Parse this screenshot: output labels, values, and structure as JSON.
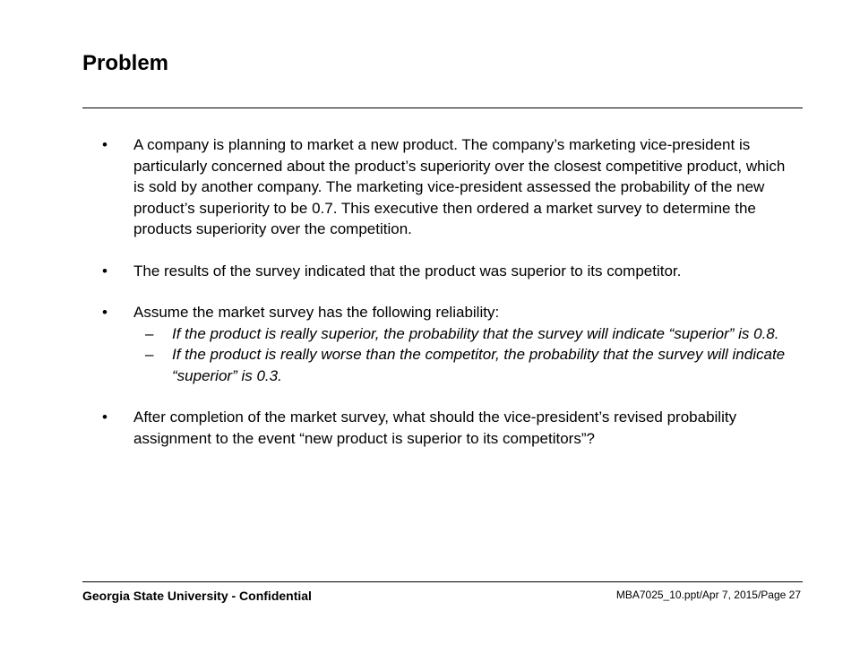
{
  "slide": {
    "title": "Problem"
  },
  "bullets": {
    "b1": "A company is planning to market a new product. The company’s marketing vice-president is particularly concerned about the product’s superiority over the closest competitive product, which is sold by another company. The marketing vice-president assessed the probability of the new product’s superiority to be 0.7. This executive then ordered a market survey to determine the products superiority over the competition.",
    "b2": "The results of the survey indicated that the product was superior to its competitor.",
    "b3": "Assume the market survey has the following reliability:",
    "b3_sub1": "If the product is really superior, the probability that the survey will indicate “superior” is 0.8.",
    "b3_sub2": "If the product is really worse than the competitor, the probability that the survey will indicate “superior” is 0.3.",
    "b4": "After completion of the market survey, what should the vice-president’s revised probability assignment to the event “new product is superior to its competitors”?",
    "bullet_char": "•",
    "dash_char": "–"
  },
  "footer": {
    "left": "Georgia State University - Confidential",
    "right": "MBA7025_10.ppt/Apr 7, 2015/Page 27"
  }
}
